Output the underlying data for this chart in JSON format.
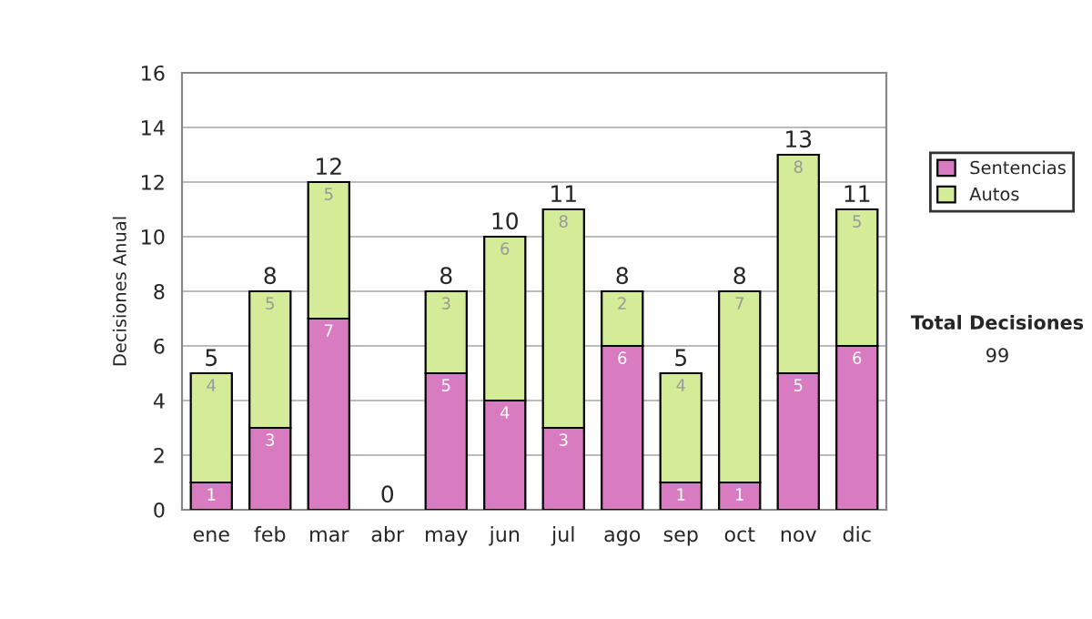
{
  "chart_data": {
    "type": "bar",
    "stacked": true,
    "ylabel": "Decisiones Anual",
    "categories": [
      "ene",
      "feb",
      "mar",
      "abr",
      "may",
      "jun",
      "jul",
      "ago",
      "sep",
      "oct",
      "nov",
      "dic"
    ],
    "series": [
      {
        "name": "Sentencias",
        "color": "#d97bc0",
        "values": [
          1,
          3,
          7,
          0,
          5,
          4,
          3,
          6,
          1,
          1,
          5,
          6
        ],
        "value_labels": [
          "1",
          "3",
          "7",
          null,
          "5",
          "4",
          "3",
          "6",
          "1",
          "1",
          "5",
          "6"
        ]
      },
      {
        "name": "Autos",
        "color": "#d4ec98",
        "values": [
          4,
          5,
          5,
          0,
          3,
          6,
          8,
          2,
          4,
          7,
          8,
          5
        ],
        "value_labels": [
          "4",
          "5",
          "5",
          null,
          "3",
          "6",
          "8",
          "2",
          "4",
          "7",
          "8",
          "5"
        ]
      }
    ],
    "totals": [
      "5",
      "8",
      "12",
      "0",
      "8",
      "10",
      "11",
      "8",
      "5",
      "8",
      "13",
      "11"
    ],
    "ylim": [
      0,
      16
    ],
    "yticks": [
      0,
      2,
      4,
      6,
      8,
      10,
      12,
      14,
      16
    ],
    "grid": "y",
    "legend": "right",
    "annotations": [
      "Total Decisiones",
      "99"
    ]
  }
}
